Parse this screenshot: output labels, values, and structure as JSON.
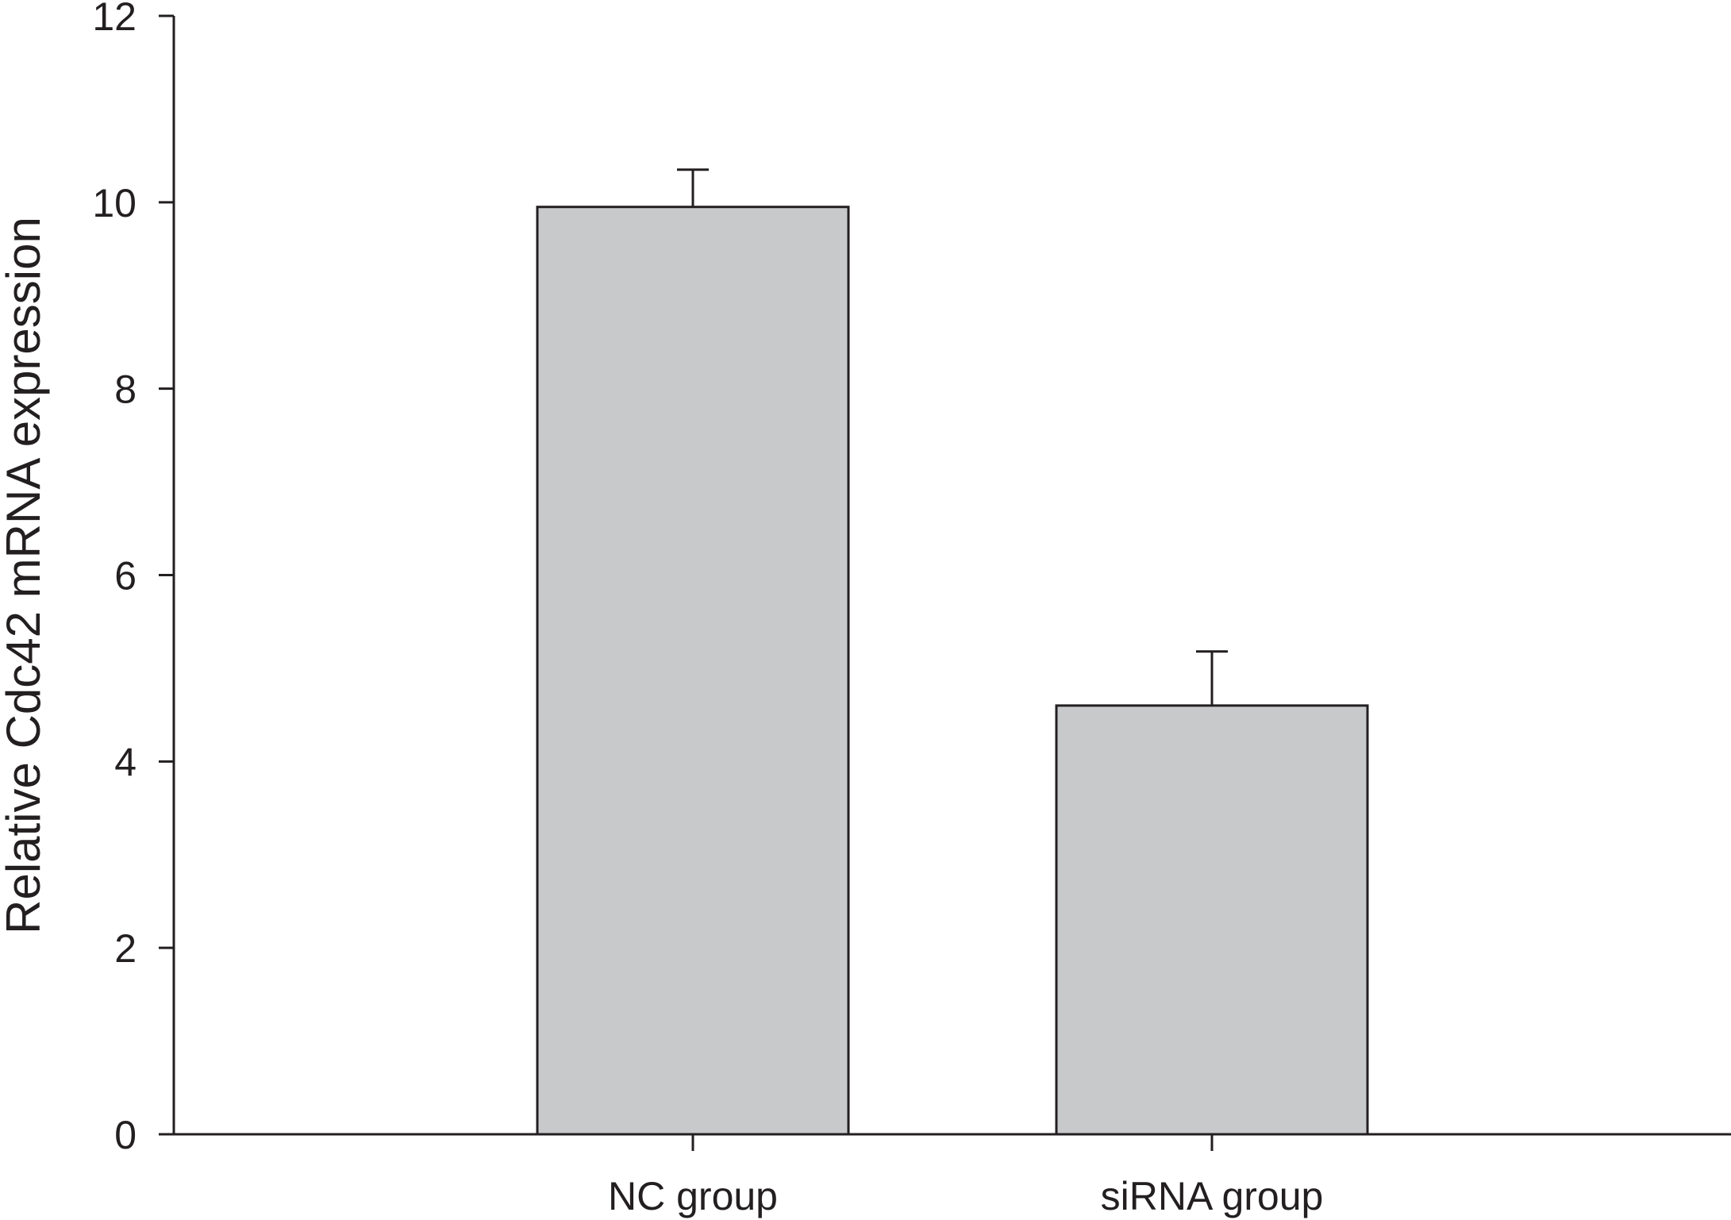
{
  "chart_data": {
    "type": "bar",
    "title": "",
    "xlabel": "",
    "ylabel": "Relative Cdc42 mRNA  expression",
    "categories": [
      "NC group",
      "siRNA group"
    ],
    "values": [
      9.95,
      4.6
    ],
    "errors": [
      0.4,
      0.58
    ],
    "ylim": [
      0,
      12
    ],
    "yticks": [
      0,
      2,
      4,
      6,
      8,
      10,
      12
    ],
    "ytick_labels": [
      "0",
      "2",
      "4",
      "6",
      "8",
      "10",
      "12"
    ],
    "grid": false,
    "legend": "none",
    "colors": {
      "bar_fill": "#c8c9cb",
      "stroke": "#231f20",
      "background": "#ffffff"
    }
  }
}
